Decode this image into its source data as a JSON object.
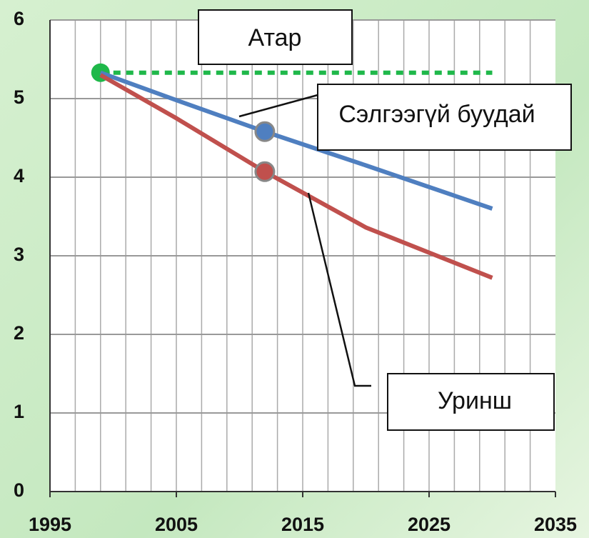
{
  "chart_data": {
    "type": "line",
    "x": [
      1999,
      2005,
      2012,
      2020,
      2030
    ],
    "series": [
      {
        "name": "Атар",
        "color": "#1fb84a",
        "dash": true,
        "values": [
          5.33,
          5.33,
          5.33,
          5.33,
          5.33
        ],
        "markers": [
          0
        ]
      },
      {
        "name": "Сэлгээгүй буудай",
        "color": "#4f7fc0",
        "dash": false,
        "values": [
          5.33,
          4.98,
          4.58,
          4.15,
          3.6
        ],
        "markers": [
          2
        ]
      },
      {
        "name": "Уринш",
        "color": "#c0504d",
        "dash": false,
        "values": [
          5.3,
          4.75,
          4.07,
          3.36,
          2.72
        ],
        "markers": [
          2
        ]
      }
    ],
    "xlim": [
      1995,
      2035
    ],
    "xticks": [
      1995,
      2005,
      2015,
      2025,
      2035
    ],
    "ylim": [
      0,
      6
    ],
    "yticks": [
      0,
      1,
      2,
      3,
      4,
      5,
      6
    ],
    "grid": true,
    "xgrid_step": 2
  }
}
